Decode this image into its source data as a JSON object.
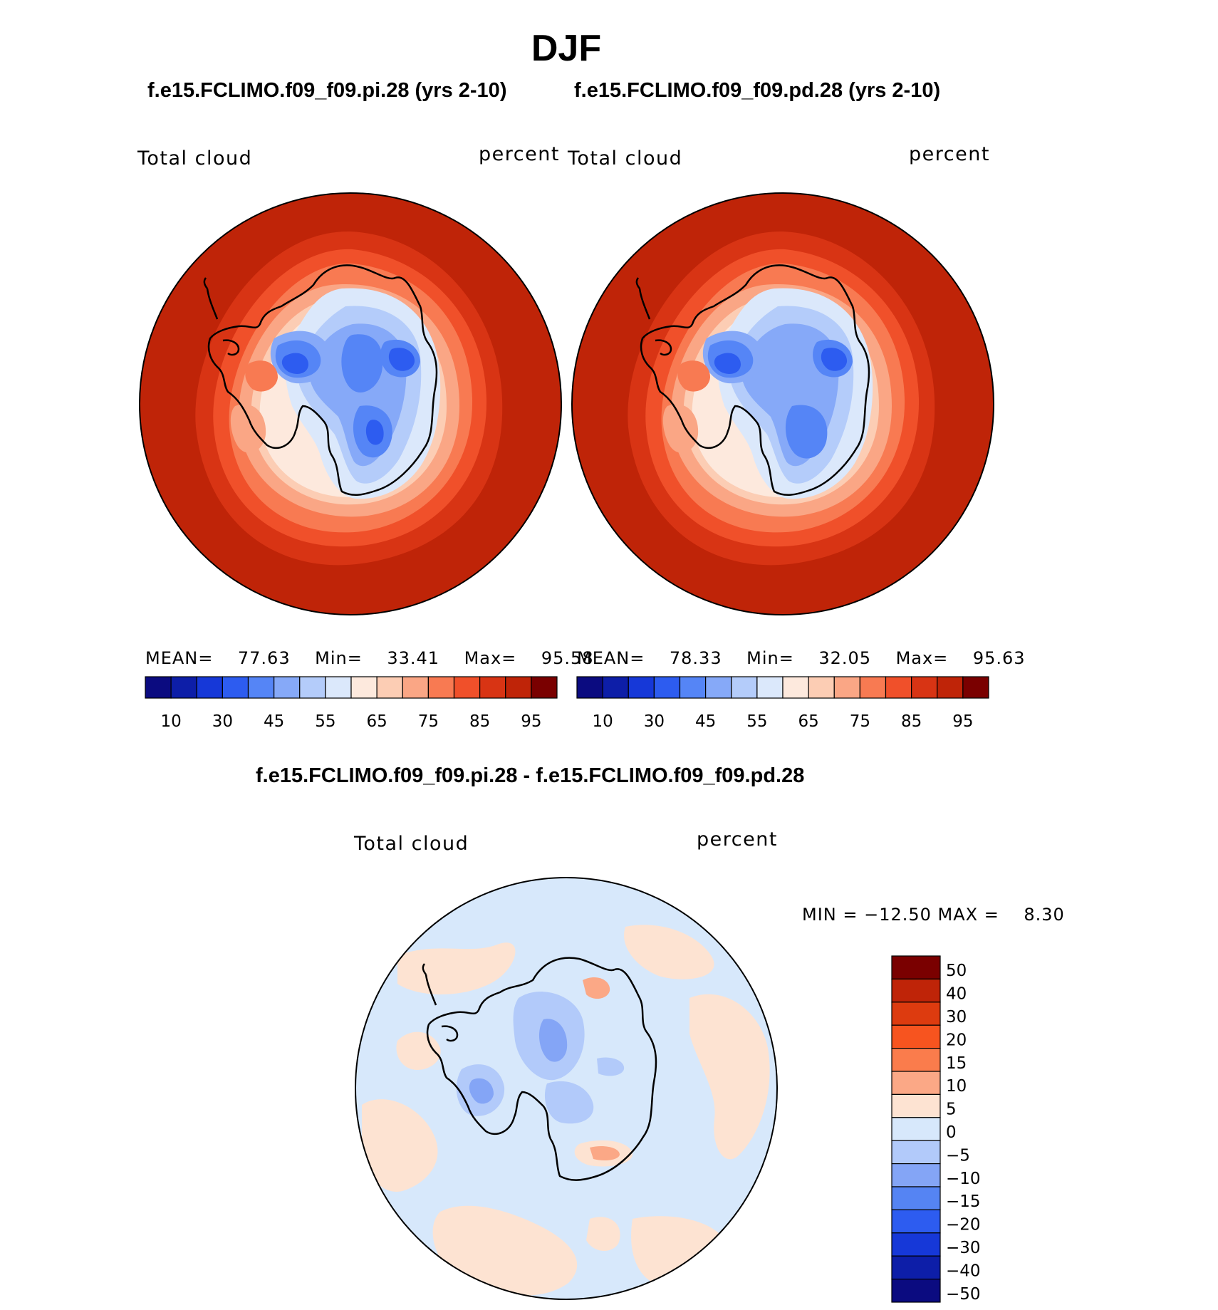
{
  "title": "DJF",
  "panels": [
    {
      "case_title": "f.e15.FCLIMO.f09_f09.pi.28 (yrs 2-10)",
      "variable": "Total cloud",
      "units": "percent",
      "stats": {
        "mean_label": "MEAN=",
        "mean": "77.63",
        "min_label": "Min=",
        "min": "33.41",
        "max_label": "Max=",
        "max": "95.58"
      }
    },
    {
      "case_title": "f.e15.FCLIMO.f09_f09.pd.28 (yrs 2-10)",
      "variable": "Total cloud",
      "units": "percent",
      "stats": {
        "mean_label": "MEAN=",
        "mean": "78.33",
        "min_label": "Min=",
        "min": "32.05",
        "max_label": "Max=",
        "max": "95.63"
      }
    }
  ],
  "diff_panel": {
    "case_title": "f.e15.FCLIMO.f09_f09.pi.28 - f.e15.FCLIMO.f09_f09.pd.28",
    "variable": "Total cloud",
    "units": "percent",
    "minmax": "MIN = −12.50 MAX =    8.30"
  },
  "colorbar_main": {
    "colors": [
      "#0b0b80",
      "#0d1ea8",
      "#1638d8",
      "#2d5cf0",
      "#5585f6",
      "#86a9f8",
      "#b4ccfa",
      "#dbe8fb",
      "#fde9dd",
      "#fccdb4",
      "#faa685",
      "#f87a52",
      "#f0502a",
      "#d83414",
      "#bf2408",
      "#7a0000"
    ],
    "ticks": [
      "10",
      "30",
      "45",
      "55",
      "65",
      "75",
      "85",
      "95"
    ]
  },
  "colorbar_diff": {
    "colors": [
      "#7a0000",
      "#bf2408",
      "#dd3b0f",
      "#f7541f",
      "#fa7c4c",
      "#fba886",
      "#fde3d2",
      "#d7e8fb",
      "#b2cafa",
      "#84a5f6",
      "#5584f3",
      "#2d5cf0",
      "#1638d8",
      "#0d1ea8",
      "#0b0b80"
    ],
    "ticks": [
      "50",
      "40",
      "30",
      "20",
      "15",
      "10",
      "5",
      "0",
      "−5",
      "−10",
      "−15",
      "−20",
      "−30",
      "−40",
      "−50"
    ]
  }
}
